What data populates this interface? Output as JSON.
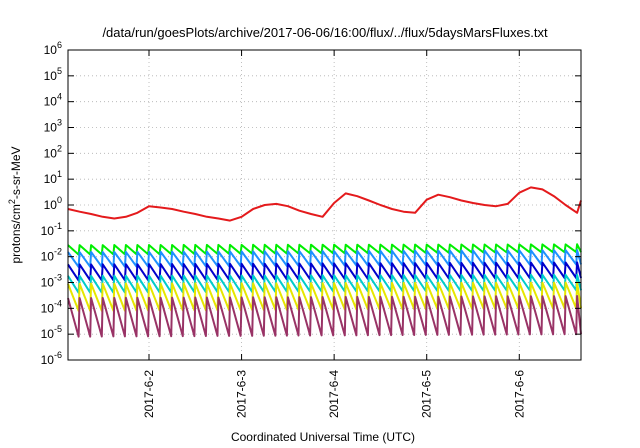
{
  "chart_data": {
    "type": "line",
    "title": "/data/run/goesPlots/archive/2017-06-06/16:00/flux/../flux/5daysMarsFluxes.txt",
    "xlabel": "Coordinated Universal Time (UTC)",
    "ylabel": "protons/cm2-s-sr-MeV",
    "ylabel_parts": {
      "base": "protons/cm",
      "sup": "2",
      "rest": "-s-sr-MeV"
    },
    "yscale": "log",
    "ylim": [
      1e-06,
      1000000.0
    ],
    "ytick_exponents": [
      -6,
      -5,
      -4,
      -3,
      -2,
      -1,
      0,
      1,
      2,
      3,
      4,
      5,
      6
    ],
    "ytick_base": "10",
    "xlim": [
      "2017-06-01T03:00",
      "2017-06-06T16:00"
    ],
    "xtick_labels": [
      "2017-6-2",
      "2017-6-3",
      "2017-6-4",
      "2017-6-5",
      "2017-6-6"
    ],
    "xtick_values": [
      "2017-06-02T00:00",
      "2017-06-03T00:00",
      "2017-06-04T00:00",
      "2017-06-05T00:00",
      "2017-06-06T00:00"
    ],
    "grid": true,
    "series": [
      {
        "color": "#e41a1c",
        "period_hours": 3,
        "x": [
          "2017-06-01T03:00",
          "2017-06-01T06:00",
          "2017-06-01T09:00",
          "2017-06-01T12:00",
          "2017-06-01T15:00",
          "2017-06-01T18:00",
          "2017-06-01T21:00",
          "2017-06-02T00:00",
          "2017-06-02T03:00",
          "2017-06-02T06:00",
          "2017-06-02T09:00",
          "2017-06-02T12:00",
          "2017-06-02T15:00",
          "2017-06-02T18:00",
          "2017-06-02T21:00",
          "2017-06-03T00:00",
          "2017-06-03T03:00",
          "2017-06-03T06:00",
          "2017-06-03T09:00",
          "2017-06-03T12:00",
          "2017-06-03T15:00",
          "2017-06-03T18:00",
          "2017-06-03T21:00",
          "2017-06-04T00:00",
          "2017-06-04T03:00",
          "2017-06-04T06:00",
          "2017-06-04T09:00",
          "2017-06-04T12:00",
          "2017-06-04T15:00",
          "2017-06-04T18:00",
          "2017-06-04T21:00",
          "2017-06-05T00:00",
          "2017-06-05T03:00",
          "2017-06-05T06:00",
          "2017-06-05T09:00",
          "2017-06-05T12:00",
          "2017-06-05T15:00",
          "2017-06-05T18:00",
          "2017-06-05T21:00",
          "2017-06-06T00:00",
          "2017-06-06T03:00",
          "2017-06-06T06:00",
          "2017-06-06T09:00",
          "2017-06-06T12:00",
          "2017-06-06T15:00",
          "2017-06-06T16:00"
        ],
        "y": [
          0.7,
          0.55,
          0.45,
          0.35,
          0.3,
          0.35,
          0.5,
          0.9,
          0.8,
          0.7,
          0.55,
          0.45,
          0.35,
          0.3,
          0.25,
          0.35,
          0.7,
          1.0,
          1.1,
          0.9,
          0.6,
          0.45,
          0.35,
          1.2,
          2.8,
          2.2,
          1.5,
          1.0,
          0.7,
          0.55,
          0.5,
          1.6,
          2.5,
          2.0,
          1.5,
          1.2,
          1.0,
          0.9,
          1.1,
          3.0,
          4.8,
          4.0,
          2.2,
          1.0,
          0.5,
          1.5
        ]
      },
      {
        "color": "#00ee00",
        "period_hours": 3,
        "x": [
          "2017-06-01T03:00",
          "2017-06-06T16:00"
        ],
        "y_high": [
          0.028,
          0.03
        ],
        "y_low": [
          0.012,
          0.015
        ]
      },
      {
        "color": "#1e90ff",
        "period_hours": 3,
        "x": [
          "2017-06-01T03:00",
          "2017-06-06T16:00"
        ],
        "y_high": [
          0.015,
          0.018
        ],
        "y_low": [
          0.004,
          0.005
        ]
      },
      {
        "color": "#0000cc",
        "period_hours": 3,
        "x": [
          "2017-06-01T03:00",
          "2017-06-06T16:00"
        ],
        "y_high": [
          0.005,
          0.006
        ],
        "y_low": [
          0.0012,
          0.0015
        ]
      },
      {
        "color": "#00cccc",
        "period_hours": 3,
        "x": [
          "2017-06-01T03:00",
          "2017-06-06T16:00"
        ],
        "y_high": [
          0.0018,
          0.002
        ],
        "y_low": [
          0.0004,
          0.0005
        ]
      },
      {
        "color": "#e6e600",
        "period_hours": 3,
        "x": [
          "2017-06-01T03:00",
          "2017-06-06T16:00"
        ],
        "y_high": [
          0.0009,
          0.001
        ],
        "y_low": [
          8e-05,
          0.0001
        ]
      },
      {
        "color": "#993366",
        "period_hours": 3,
        "x": [
          "2017-06-01T03:00",
          "2017-06-06T16:00"
        ],
        "y_high": [
          0.00025,
          0.0003
        ],
        "y_low": [
          8e-06,
          1e-05
        ]
      }
    ]
  }
}
